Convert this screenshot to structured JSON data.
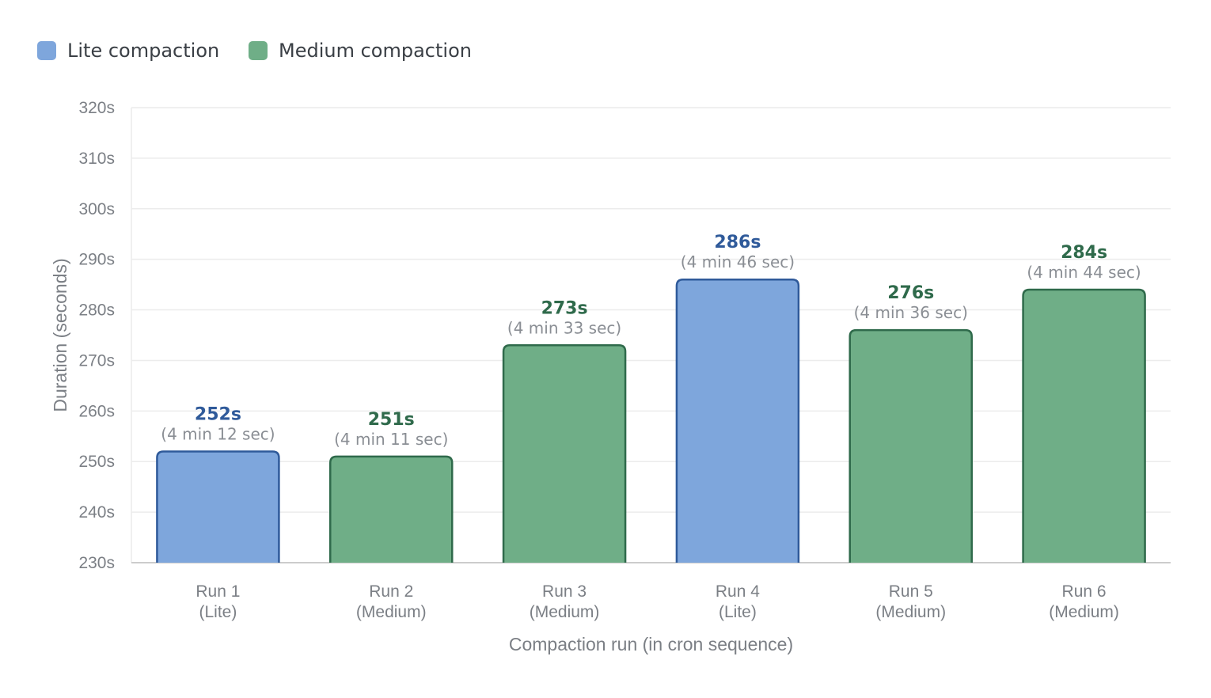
{
  "chart_data": {
    "type": "bar",
    "title": "",
    "xlabel": "Compaction run (in cron sequence)",
    "ylabel": "Duration (seconds)",
    "ylim": [
      230,
      320
    ],
    "yticks": [
      230,
      240,
      250,
      260,
      270,
      280,
      290,
      300,
      310,
      320
    ],
    "ytick_labels": [
      "230s",
      "240s",
      "250s",
      "260s",
      "270s",
      "280s",
      "290s",
      "300s",
      "310s",
      "320s"
    ],
    "legend_position": "top-left",
    "grid": true,
    "series": [
      {
        "name": "Lite compaction",
        "key": "lite",
        "color": "#7ea6dc",
        "border": "#2f5a9a",
        "label_color": "#2f5a9a"
      },
      {
        "name": "Medium compaction",
        "key": "medium",
        "color": "#6fae87",
        "border": "#2f6a4b",
        "label_color": "#2f6a4b"
      }
    ],
    "bars": [
      {
        "line1": "Run 1",
        "line2": "(Lite)",
        "value": 252,
        "value_label": "252s",
        "sub_label": "(4 min 12 sec)",
        "series": "lite"
      },
      {
        "line1": "Run 2",
        "line2": "(Medium)",
        "value": 251,
        "value_label": "251s",
        "sub_label": "(4 min 11 sec)",
        "series": "medium"
      },
      {
        "line1": "Run 3",
        "line2": "(Medium)",
        "value": 273,
        "value_label": "273s",
        "sub_label": "(4 min 33 sec)",
        "series": "medium"
      },
      {
        "line1": "Run 4",
        "line2": "(Lite)",
        "value": 286,
        "value_label": "286s",
        "sub_label": "(4 min 46 sec)",
        "series": "lite"
      },
      {
        "line1": "Run 5",
        "line2": "(Medium)",
        "value": 276,
        "value_label": "276s",
        "sub_label": "(4 min 36 sec)",
        "series": "medium"
      },
      {
        "line1": "Run 6",
        "line2": "(Medium)",
        "value": 284,
        "value_label": "284s",
        "sub_label": "(4 min 44 sec)",
        "series": "medium"
      }
    ]
  },
  "colors": {
    "grid": "#ececec",
    "axis": "#cccccc"
  }
}
